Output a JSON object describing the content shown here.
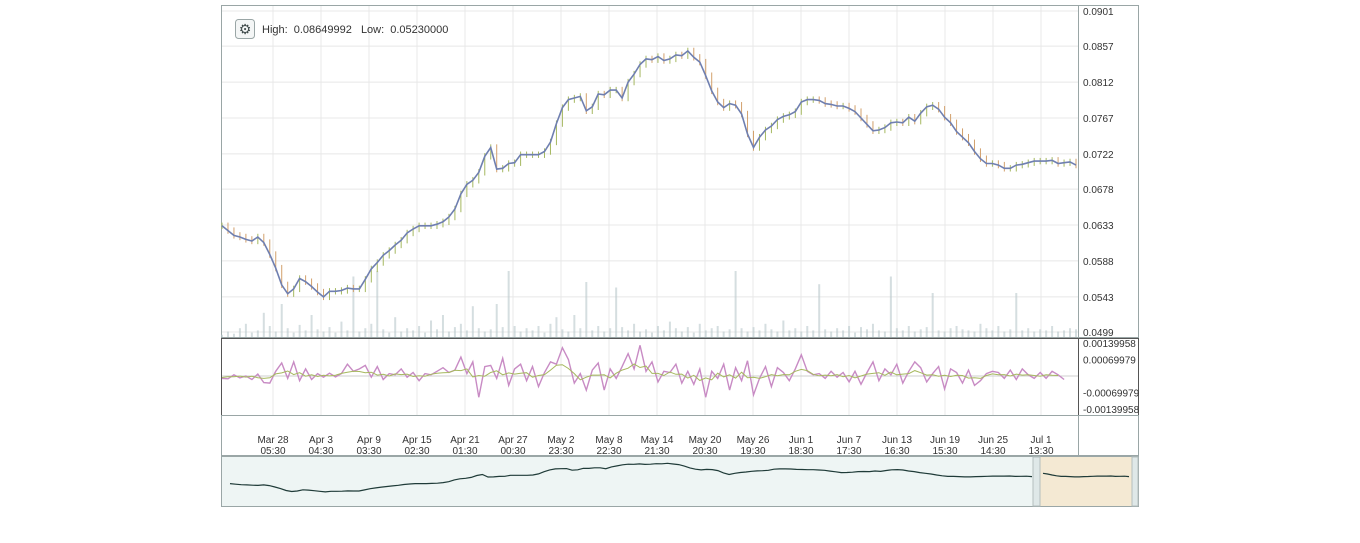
{
  "info": {
    "high_label": "High:",
    "high_value": "0.08649992",
    "low_label": "Low:",
    "low_value": "0.05230000",
    "settings_icon": "gear-icon"
  },
  "colors": {
    "price_line": "#6f7fb0",
    "candle_up": "#a5b860",
    "candle_down": "#d2a06c",
    "volume": "#b9c8cc",
    "osc_main": "#c88bc4",
    "osc_signal": "#a6b85e",
    "navigator_fill": "#eef5f4",
    "navigator_line": "#1f3b38",
    "navigator_selection": "#f4e6cc",
    "grid": "#e8e8e8",
    "frame": "#9aa6a6"
  },
  "chart_data": [
    {
      "type": "line",
      "name": "price",
      "ylim": [
        0.0499,
        0.0901
      ],
      "y_ticks": [
        "0.0901",
        "0.0857",
        "0.0812",
        "0.0767",
        "0.0722",
        "0.0678",
        "0.0633",
        "0.0588",
        "0.0543",
        "0.0499"
      ],
      "x_ticks": [
        {
          "date": "Mar 28",
          "time": "05:30"
        },
        {
          "date": "Apr 3",
          "time": "04:30"
        },
        {
          "date": "Apr 9",
          "time": "03:30"
        },
        {
          "date": "Apr 15",
          "time": "02:30"
        },
        {
          "date": "Apr 21",
          "time": "01:30"
        },
        {
          "date": "Apr 27",
          "time": "00:30"
        },
        {
          "date": "May 2",
          "time": "23:30"
        },
        {
          "date": "May 8",
          "time": "22:30"
        },
        {
          "date": "May 14",
          "time": "21:30"
        },
        {
          "date": "May 20",
          "time": "20:30"
        },
        {
          "date": "May 26",
          "time": "19:30"
        },
        {
          "date": "Jun 1",
          "time": "18:30"
        },
        {
          "date": "Jun 7",
          "time": "17:30"
        },
        {
          "date": "Jun 13",
          "time": "16:30"
        },
        {
          "date": "Jun 19",
          "time": "15:30"
        },
        {
          "date": "Jun 25",
          "time": "14:30"
        },
        {
          "date": "Jul 1",
          "time": "13:30"
        }
      ],
      "x_index": [
        0,
        1,
        2,
        3,
        4,
        5,
        6,
        7,
        8,
        9,
        10,
        11,
        12,
        13,
        14,
        15,
        16,
        17,
        18,
        19,
        20,
        21,
        22,
        23,
        24,
        25,
        26,
        27,
        28,
        29,
        30,
        31,
        32,
        33,
        34,
        35,
        36,
        37,
        38,
        39,
        40,
        41,
        42,
        43,
        44,
        45,
        46,
        47,
        48,
        49,
        50,
        51,
        52,
        53,
        54,
        55,
        56,
        57,
        58,
        59,
        60,
        61,
        62,
        63,
        64,
        65,
        66,
        67,
        68,
        69,
        70,
        71,
        72,
        73,
        74,
        75,
        76,
        77,
        78,
        79,
        80,
        81,
        82,
        83,
        84,
        85,
        86,
        87,
        88,
        89,
        90,
        91,
        92,
        93,
        94,
        95,
        96,
        97,
        98,
        99,
        100,
        101,
        102,
        103,
        104,
        105,
        106,
        107,
        108,
        109,
        110,
        111,
        112,
        113,
        114,
        115,
        116,
        117,
        118,
        119,
        120,
        121,
        122,
        123,
        124,
        125,
        126,
        127,
        128,
        129,
        130,
        131,
        132,
        133,
        134,
        135,
        136,
        137,
        138,
        139,
        140,
        141,
        142,
        143
      ],
      "values": [
        0.0632,
        0.0626,
        0.062,
        0.0618,
        0.0615,
        0.0613,
        0.0618,
        0.0611,
        0.0596,
        0.0579,
        0.0558,
        0.0547,
        0.0553,
        0.0566,
        0.0562,
        0.0556,
        0.0549,
        0.0543,
        0.055,
        0.055,
        0.0551,
        0.0554,
        0.0553,
        0.0553,
        0.0565,
        0.0578,
        0.0586,
        0.0595,
        0.0601,
        0.0608,
        0.0614,
        0.0623,
        0.0628,
        0.0632,
        0.0632,
        0.0632,
        0.0634,
        0.0637,
        0.0643,
        0.0653,
        0.0672,
        0.0684,
        0.0689,
        0.0699,
        0.0719,
        0.073,
        0.0703,
        0.0704,
        0.071,
        0.0711,
        0.0721,
        0.0721,
        0.0721,
        0.0721,
        0.0725,
        0.0737,
        0.076,
        0.078,
        0.079,
        0.0792,
        0.0794,
        0.0776,
        0.0781,
        0.0797,
        0.0796,
        0.0802,
        0.0802,
        0.0792,
        0.0812,
        0.0822,
        0.0834,
        0.0841,
        0.084,
        0.0844,
        0.0839,
        0.0841,
        0.0846,
        0.0845,
        0.0851,
        0.0843,
        0.0837,
        0.082,
        0.0801,
        0.0787,
        0.078,
        0.0785,
        0.0783,
        0.0772,
        0.0747,
        0.073,
        0.0743,
        0.0752,
        0.0757,
        0.0765,
        0.0769,
        0.0771,
        0.0775,
        0.0787,
        0.079,
        0.079,
        0.0789,
        0.0785,
        0.0784,
        0.0782,
        0.0782,
        0.0779,
        0.0775,
        0.0767,
        0.0759,
        0.0751,
        0.0752,
        0.0755,
        0.0761,
        0.0762,
        0.0761,
        0.0768,
        0.0763,
        0.0773,
        0.0781,
        0.0783,
        0.0778,
        0.0768,
        0.0761,
        0.075,
        0.0743,
        0.0736,
        0.0725,
        0.0716,
        0.071,
        0.071,
        0.0708,
        0.0704,
        0.0704,
        0.0708,
        0.0709,
        0.0711,
        0.0713,
        0.0713,
        0.0713,
        0.0714,
        0.071,
        0.0711,
        0.0712,
        0.0708
      ],
      "volume": [
        0.02,
        0.05,
        0.03,
        0.08,
        0.12,
        0.04,
        0.06,
        0.22,
        0.1,
        0.05,
        0.3,
        0.08,
        0.04,
        0.11,
        0.06,
        0.2,
        0.07,
        0.05,
        0.09,
        0.04,
        0.14,
        0.06,
        0.55,
        0.05,
        0.08,
        0.12,
        0.6,
        0.07,
        0.04,
        0.18,
        0.05,
        0.08,
        0.06,
        0.1,
        0.04,
        0.15,
        0.07,
        0.2,
        0.05,
        0.09,
        0.12,
        0.06,
        0.28,
        0.08,
        0.05,
        0.07,
        0.3,
        0.09,
        0.6,
        0.1,
        0.05,
        0.08,
        0.06,
        0.1,
        0.04,
        0.12,
        0.18,
        0.07,
        0.05,
        0.2,
        0.08,
        0.5,
        0.06,
        0.1,
        0.05,
        0.08,
        0.45,
        0.09,
        0.06,
        0.12,
        0.05,
        0.07,
        0.04,
        0.1,
        0.06,
        0.14,
        0.08,
        0.05,
        0.09,
        0.04,
        0.12,
        0.06,
        0.08,
        0.1,
        0.05,
        0.07,
        0.6,
        0.08,
        0.05,
        0.09,
        0.06,
        0.12,
        0.07,
        0.05,
        0.15,
        0.06,
        0.08,
        0.05,
        0.1,
        0.06,
        0.48,
        0.07,
        0.05,
        0.08,
        0.06,
        0.1,
        0.04,
        0.09,
        0.07,
        0.12,
        0.06,
        0.05,
        0.55,
        0.08,
        0.06,
        0.1,
        0.05,
        0.07,
        0.09,
        0.4,
        0.06,
        0.05,
        0.08,
        0.1,
        0.07,
        0.06,
        0.05,
        0.12,
        0.08,
        0.06,
        0.1,
        0.05,
        0.07,
        0.4,
        0.06,
        0.08,
        0.05,
        0.07,
        0.06,
        0.1,
        0.05,
        0.06,
        0.08,
        0.07
      ]
    },
    {
      "type": "line",
      "name": "oscillator",
      "ylim": [
        -0.00139958,
        0.00139958
      ],
      "y_ticks": [
        "0.00139958",
        "0.00069979",
        "-0.00069979",
        "-0.00139958"
      ],
      "values": [
        -0.0001,
        -0.00012,
        5e-05,
        -8e-05,
        0.0,
        -0.00015,
        8e-05,
        -0.00028,
        -0.0003,
        0.0002,
        0.00055,
        -0.0001,
        0.0006,
        -0.0002,
        0.0003,
        -0.00015,
        0.0001,
        -5e-05,
        0.00012,
        -4e-05,
        0.0001,
        0.0005,
        0.0002,
        0.0003,
        0.00045,
        -5e-05,
        0.0004,
        -0.00015,
        0.0001,
        5e-05,
        0.0003,
        -5e-05,
        0.00015,
        -0.0002,
        0.0001,
        5e-05,
        0.0002,
        0.00035,
        0.00015,
        0.00025,
        0.0008,
        0.0001,
        0.0006,
        -0.0009,
        0.0004,
        0.00045,
        -0.0001,
        0.00075,
        -0.0004,
        0.0003,
        0.0005,
        -0.0002,
        0.0004,
        -0.00045,
        0.00015,
        0.0006,
        0.0005,
        0.0012,
        0.0007,
        -0.0003,
        0.0001,
        -0.0006,
        0.00025,
        0.00055,
        -0.0006,
        0.0003,
        -0.0001,
        0.0004,
        0.00095,
        0.0003,
        0.0013,
        0.0002,
        0.0006,
        -0.00025,
        0.0002,
        0.00015,
        0.0005,
        -0.0003,
        0.0002,
        -0.00035,
        0.0003,
        -0.0009,
        0.0002,
        -0.0001,
        0.0005,
        -0.0006,
        0.00035,
        -0.0002,
        0.00065,
        -0.0008,
        -0.0001,
        0.0004,
        -0.00045,
        0.00035,
        0.00015,
        -0.0002,
        0.0003,
        0.0009,
        0.0002,
        5e-05,
        0.0001,
        -0.0001,
        0.0002,
        -5e-05,
        0.00015,
        -0.00025,
        0.0002,
        -0.00035,
        0.00015,
        0.0006,
        -0.0002,
        0.0003,
        5e-05,
        0.0005,
        -0.0003,
        0.0002,
        0.0006,
        0.00035,
        -0.00025,
        0.0001,
        0.0004,
        -0.00055,
        0.0003,
        0.00015,
        -0.0003,
        0.00025,
        -0.0004,
        -0.0002,
        0.0001,
        0.0002,
        0.00015,
        -0.0001,
        0.00025,
        -0.00015,
        0.0003,
        5e-05,
        -0.0001,
        0.00015,
        -0.0001,
        0.0002,
        5e-05,
        -0.00015
      ]
    }
  ]
}
